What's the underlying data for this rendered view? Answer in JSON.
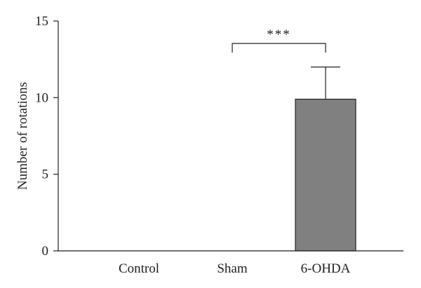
{
  "chart_data": {
    "type": "bar",
    "title": "",
    "xlabel": "",
    "ylabel": "Number of rotations",
    "categories": [
      "Control",
      "Sham",
      "6-OHDA"
    ],
    "values": [
      0,
      0,
      9.9
    ],
    "error_upper": [
      0,
      0,
      2.1
    ],
    "ylim": [
      0,
      15
    ],
    "yticks": [
      0,
      5,
      10,
      15
    ],
    "grid": false,
    "legend": "none",
    "bar_color": "#808080",
    "significance": {
      "from_category": "Sham",
      "to_category": "6-OHDA",
      "label": "***"
    }
  }
}
